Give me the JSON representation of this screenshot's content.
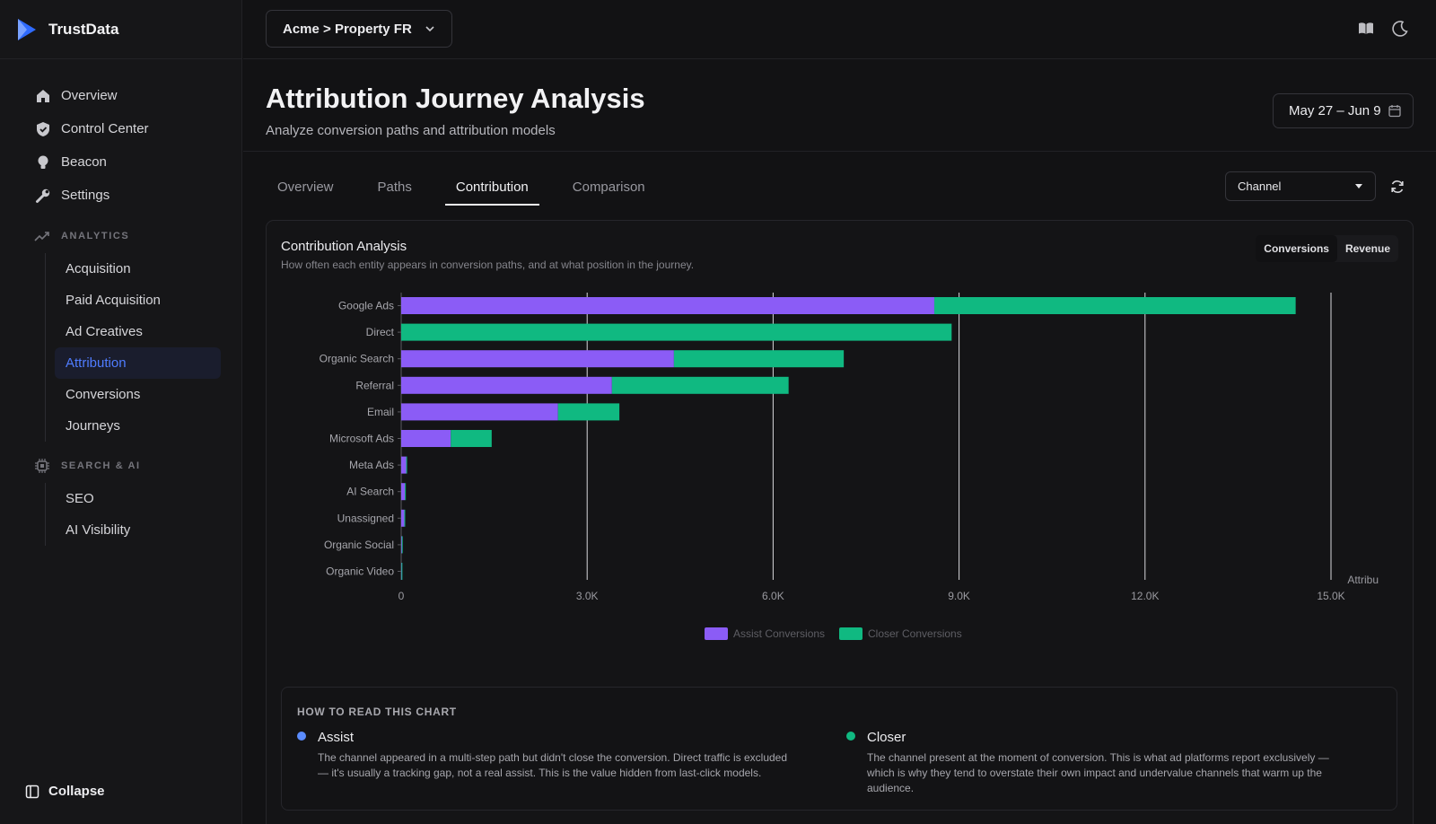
{
  "app": {
    "name": "TrustData"
  },
  "sidebar": {
    "items": [
      {
        "label": "Overview",
        "icon": "home-icon"
      },
      {
        "label": "Control Center",
        "icon": "shield-icon"
      },
      {
        "label": "Beacon",
        "icon": "bulb-icon"
      },
      {
        "label": "Settings",
        "icon": "wrench-icon"
      }
    ],
    "analytics": {
      "label": "ANALYTICS",
      "items": [
        "Acquisition",
        "Paid Acquisition",
        "Ad Creatives",
        "Attribution",
        "Conversions",
        "Journeys"
      ],
      "active": "Attribution"
    },
    "search_ai": {
      "label": "SEARCH & AI",
      "items": [
        "SEO",
        "AI Visibility"
      ]
    },
    "collapse_label": "Collapse"
  },
  "topbar": {
    "property": "Acme > Property FR"
  },
  "header": {
    "title": "Attribution Journey Analysis",
    "subtitle": "Analyze conversion paths and attribution models",
    "date_range": "May 27 – Jun 9"
  },
  "tabs": [
    "Overview",
    "Paths",
    "Contribution",
    "Comparison"
  ],
  "active_tab": "Contribution",
  "group_by": "Channel",
  "card": {
    "title": "Contribution Analysis",
    "subtitle": "How often each entity appears in conversion paths, and at what position in the journey.",
    "metric_toggle": [
      "Conversions",
      "Revenue"
    ],
    "active_metric": "Conversions"
  },
  "colors": {
    "assist": "#8b5cf6",
    "closer": "#10b981",
    "active_nav": "#4f7cff"
  },
  "chart_data": {
    "type": "bar",
    "orientation": "horizontal",
    "stacked": true,
    "categories": [
      "Google Ads",
      "Direct",
      "Organic Search",
      "Referral",
      "Email",
      "Microsoft Ads",
      "Meta Ads",
      "AI Search",
      "Unassigned",
      "Organic Social",
      "Organic Video"
    ],
    "series": [
      {
        "name": "Assist Conversions",
        "values": [
          8600,
          0,
          4400,
          3400,
          2530,
          800,
          80,
          60,
          50,
          10,
          5
        ]
      },
      {
        "name": "Closer Conversions",
        "values": [
          5830,
          8880,
          2740,
          2850,
          990,
          660,
          10,
          10,
          10,
          5,
          5
        ]
      }
    ],
    "xlim": [
      0,
      15000
    ],
    "xticks": [
      "0",
      "3.0K",
      "6.0K",
      "9.0K",
      "12.0K",
      "15.0K"
    ],
    "xlabel": "Attribu",
    "grid": true,
    "legend": "bottom"
  },
  "how_to_read": {
    "title": "HOW TO READ THIS CHART",
    "assist": {
      "label": "Assist",
      "text": "The channel appeared in a multi-step path but didn't close the conversion. Direct traffic is excluded — it's usually a tracking gap, not a real assist. This is the value hidden from last-click models."
    },
    "closer": {
      "label": "Closer",
      "text": "The channel present at the moment of conversion. This is what ad platforms report exclusively — which is why they tend to overstate their own impact and undervalue channels that warm up the audience."
    }
  }
}
